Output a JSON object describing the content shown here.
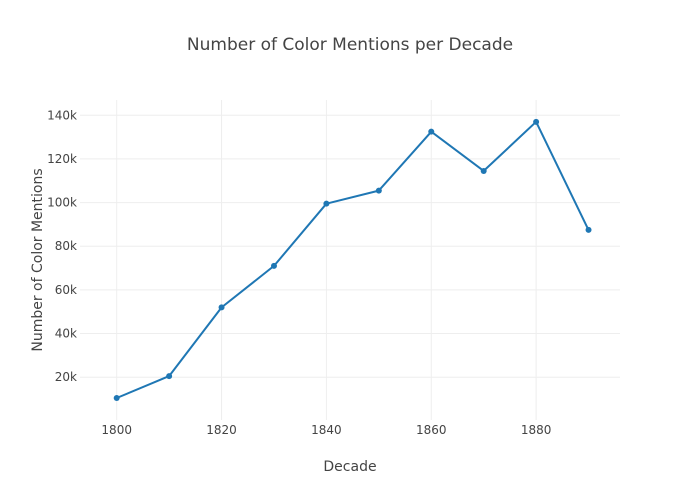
{
  "chart_data": {
    "type": "line",
    "title": "Number of Color Mentions per Decade",
    "xlabel": "Decade",
    "ylabel": "Number of Color Mentions",
    "x_ticks": [
      "1800",
      "1820",
      "1840",
      "1860",
      "1880"
    ],
    "x_tick_values": [
      1800,
      1820,
      1840,
      1860,
      1880
    ],
    "y_ticks": [
      "20k",
      "40k",
      "60k",
      "80k",
      "100k",
      "120k",
      "140k"
    ],
    "y_tick_values": [
      20000,
      40000,
      60000,
      80000,
      100000,
      120000,
      140000
    ],
    "xlim": [
      1793,
      1896
    ],
    "ylim": [
      400,
      147000
    ],
    "grid": true,
    "color": "#1f77b4",
    "series": [
      {
        "x": [
          1800,
          1810,
          1820,
          1830,
          1840,
          1850,
          1860,
          1870,
          1880,
          1890
        ],
        "values": [
          10500,
          20500,
          52000,
          71000,
          99500,
          105500,
          132500,
          114500,
          137000,
          87500
        ]
      }
    ]
  }
}
